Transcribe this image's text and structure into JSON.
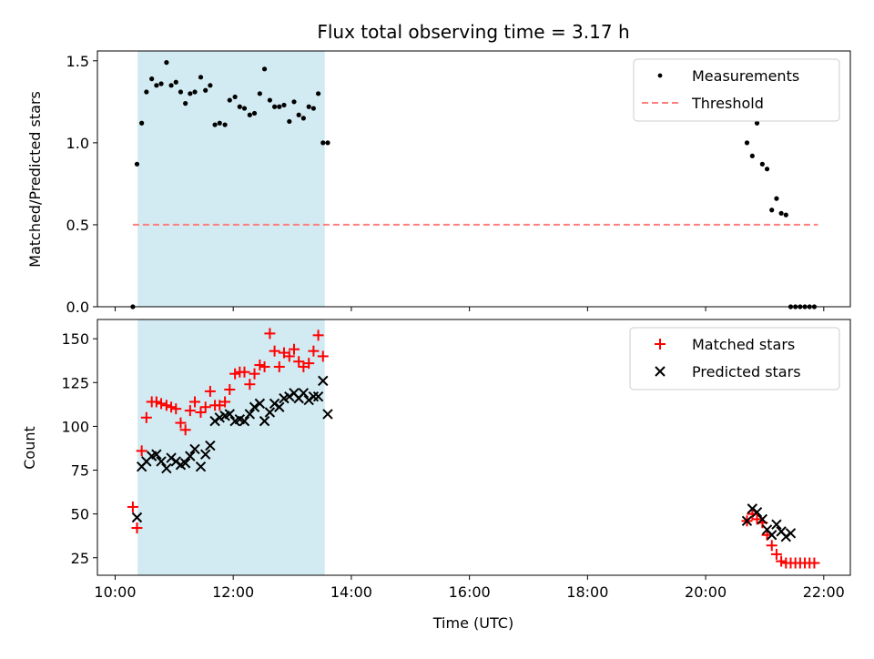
{
  "chart_data": {
    "type": "scatter",
    "title": "Flux total observing time = 3.17 h",
    "x_axis": {
      "label": "Time (UTC)",
      "range_hours": [
        9.7,
        22.45
      ],
      "ticks": [
        10,
        12,
        14,
        16,
        18,
        20,
        22
      ],
      "tick_labels": [
        "10:00",
        "12:00",
        "14:00",
        "16:00",
        "18:00",
        "20:00",
        "22:00"
      ]
    },
    "observing_window_hours": [
      10.38,
      13.55
    ],
    "window_color": "#add8e6",
    "panels": [
      {
        "id": "ratio",
        "ylabel": "Matched/Predicted stars",
        "ylim": [
          0,
          1.56
        ],
        "yticks": [
          0.0,
          0.5,
          1.0,
          1.5
        ],
        "ytick_labels": [
          "0.0",
          "0.5",
          "1.0",
          "1.5"
        ],
        "legend_placement": "top-right",
        "series": [
          {
            "name": "Measurements",
            "marker": "dot",
            "color": "#000000",
            "x": [
              10.3,
              10.37,
              10.45,
              10.53,
              10.62,
              10.7,
              10.78,
              10.87,
              10.95,
              11.03,
              11.11,
              11.19,
              11.27,
              11.35,
              11.45,
              11.53,
              11.61,
              11.69,
              11.77,
              11.86,
              11.94,
              12.03,
              12.11,
              12.19,
              12.28,
              12.36,
              12.45,
              12.53,
              12.62,
              12.7,
              12.78,
              12.86,
              12.95,
              13.03,
              13.11,
              13.19,
              13.28,
              13.36,
              13.44,
              13.52,
              13.6,
              20.7,
              20.79,
              20.87,
              20.96,
              21.04,
              21.12,
              21.2,
              21.28,
              21.36,
              21.44,
              21.52,
              21.6,
              21.68,
              21.76,
              21.84
            ],
            "y": [
              0.0,
              0.87,
              1.12,
              1.31,
              1.39,
              1.35,
              1.36,
              1.49,
              1.35,
              1.37,
              1.31,
              1.24,
              1.3,
              1.31,
              1.4,
              1.32,
              1.35,
              1.11,
              1.12,
              1.11,
              1.26,
              1.28,
              1.22,
              1.21,
              1.17,
              1.18,
              1.3,
              1.45,
              1.26,
              1.22,
              1.22,
              1.23,
              1.13,
              1.25,
              1.17,
              1.15,
              1.22,
              1.21,
              1.3,
              1.0,
              1.0,
              1.0,
              0.92,
              1.12,
              0.87,
              0.84,
              0.59,
              0.66,
              0.57,
              0.56,
              0.0,
              0.0,
              0.0,
              0.0,
              0.0,
              0.0
            ]
          },
          {
            "name": "Threshold",
            "marker": "dashed-line",
            "color": "#ff7f7f",
            "x": [
              10.3,
              21.9
            ],
            "y": [
              0.5,
              0.5
            ]
          }
        ]
      },
      {
        "id": "count",
        "ylabel": "Count",
        "ylim": [
          15,
          161
        ],
        "yticks": [
          25,
          50,
          75,
          100,
          125,
          150
        ],
        "ytick_labels": [
          "25",
          "50",
          "75",
          "100",
          "125",
          "150"
        ],
        "legend_placement": "top-right",
        "series": [
          {
            "name": "Matched stars",
            "marker": "plus",
            "color": "#ff0000",
            "x": [
              10.3,
              10.37,
              10.45,
              10.53,
              10.62,
              10.7,
              10.78,
              10.87,
              10.95,
              11.03,
              11.11,
              11.19,
              11.27,
              11.35,
              11.45,
              11.53,
              11.61,
              11.69,
              11.77,
              11.86,
              11.94,
              12.03,
              12.11,
              12.19,
              12.28,
              12.36,
              12.45,
              12.53,
              12.62,
              12.7,
              12.78,
              12.86,
              12.95,
              13.03,
              13.11,
              13.19,
              13.28,
              13.36,
              13.44,
              13.52,
              20.7,
              20.79,
              20.87,
              20.96,
              21.04,
              21.12,
              21.2,
              21.28,
              21.36,
              21.44,
              21.52,
              21.6,
              21.68,
              21.76,
              21.84
            ],
            "y": [
              54,
              42,
              86,
              105,
              114,
              114,
              113,
              112,
              111,
              110,
              102,
              98,
              109,
              114,
              108,
              111,
              120,
              112,
              112,
              114,
              121,
              130,
              131,
              131,
              124,
              130,
              135,
              134,
              153,
              143,
              134,
              142,
              140,
              144,
              137,
              134,
              136,
              143,
              152,
              140,
              46,
              50,
              47,
              45,
              38,
              32,
              27,
              23,
              22,
              22,
              22,
              22,
              22,
              22,
              22
            ]
          },
          {
            "name": "Predicted stars",
            "marker": "x",
            "color": "#000000",
            "x": [
              10.37,
              10.45,
              10.53,
              10.62,
              10.7,
              10.78,
              10.87,
              10.95,
              11.03,
              11.11,
              11.19,
              11.27,
              11.35,
              11.45,
              11.53,
              11.61,
              11.69,
              11.77,
              11.86,
              11.94,
              12.03,
              12.11,
              12.19,
              12.28,
              12.36,
              12.45,
              12.53,
              12.62,
              12.7,
              12.78,
              12.86,
              12.95,
              13.03,
              13.11,
              13.19,
              13.28,
              13.36,
              13.44,
              13.52,
              13.6,
              20.7,
              20.79,
              20.87,
              20.96,
              21.04,
              21.12,
              21.2,
              21.28,
              21.36,
              21.44
            ],
            "y": [
              48,
              77,
              80,
              83,
              84,
              80,
              76,
              82,
              80,
              78,
              79,
              83,
              87,
              77,
              84,
              89,
              103,
              105,
              106,
              107,
              103,
              104,
              103,
              107,
              111,
              113,
              103,
              108,
              113,
              111,
              116,
              117,
              119,
              116,
              119,
              115,
              117,
              117,
              126,
              107,
              46,
              53,
              51,
              47,
              41,
              38,
              44,
              40,
              37,
              39
            ]
          }
        ]
      }
    ]
  }
}
